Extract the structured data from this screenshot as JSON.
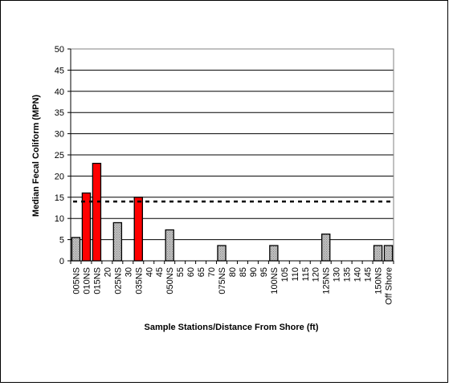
{
  "chart_data": {
    "type": "bar",
    "title": "",
    "xlabel": "Sample Stations/Distance From Shore (ft)",
    "ylabel": "Median Fecal Coliform (MPN)",
    "ylim": [
      0,
      50
    ],
    "yticks": [
      "0",
      "5",
      "10",
      "15",
      "20",
      "25",
      "30",
      "35",
      "40",
      "45",
      "50"
    ],
    "grid": true,
    "legend": "none",
    "reference_line": {
      "value": 14,
      "style": "dashed",
      "color": "#000000"
    },
    "categories": [
      "005NS",
      "010NS",
      "015NS",
      "20",
      "025NS",
      "30",
      "035NS",
      "40",
      "45",
      "050NS",
      "55",
      "60",
      "65",
      "70",
      "075NS",
      "80",
      "85",
      "90",
      "95",
      "100NS",
      "105",
      "110",
      "115",
      "120",
      "125NS",
      "130",
      "135",
      "140",
      "145",
      "150NS",
      "Off Shore"
    ],
    "values": [
      5.5,
      16,
      23,
      null,
      9,
      null,
      15,
      null,
      null,
      7.3,
      null,
      null,
      null,
      null,
      3.6,
      null,
      null,
      null,
      null,
      3.6,
      null,
      null,
      null,
      null,
      6.3,
      null,
      null,
      null,
      null,
      3.6,
      3.6
    ],
    "bar_colors": [
      "#c0c0c0",
      "#ff0000",
      "#ff0000",
      "#c0c0c0",
      "#c0c0c0",
      "#c0c0c0",
      "#ff0000",
      "#c0c0c0",
      "#c0c0c0",
      "#c0c0c0",
      "#c0c0c0",
      "#c0c0c0",
      "#c0c0c0",
      "#c0c0c0",
      "#c0c0c0",
      "#c0c0c0",
      "#c0c0c0",
      "#c0c0c0",
      "#c0c0c0",
      "#c0c0c0",
      "#c0c0c0",
      "#c0c0c0",
      "#c0c0c0",
      "#c0c0c0",
      "#c0c0c0",
      "#c0c0c0",
      "#c0c0c0",
      "#c0c0c0",
      "#c0c0c0",
      "#c0c0c0",
      "#c0c0c0"
    ]
  }
}
